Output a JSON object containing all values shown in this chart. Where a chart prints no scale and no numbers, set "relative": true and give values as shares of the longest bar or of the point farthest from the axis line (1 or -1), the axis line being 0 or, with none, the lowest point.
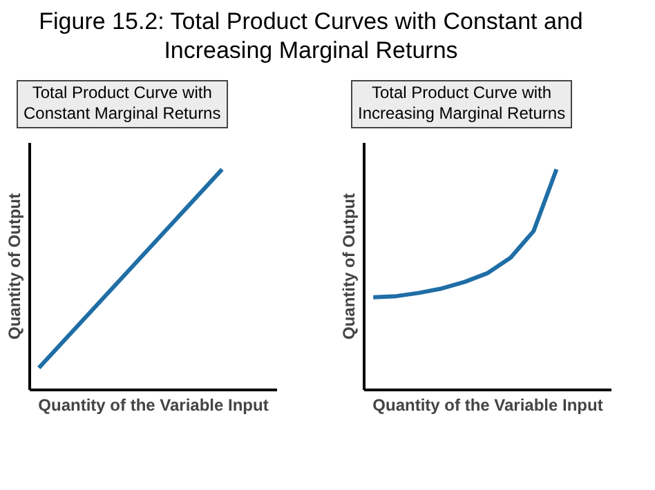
{
  "chart_data": [
    {
      "type": "line",
      "title": "Total Product Curve with\nConstant Marginal Returns",
      "xlabel": "Quantity of the Variable Input",
      "ylabel": "Quantity of Output",
      "relative": true,
      "tick_labels": false,
      "annotations": [
        "Figure 15.2: Total Product Curves with Constant and Increasing Marginal Returns"
      ],
      "categories": [
        null,
        null
      ],
      "series": [
        {
          "color": "#1f6ea6",
          "values": [
            0.1,
            1.0
          ]
        }
      ]
    },
    {
      "type": "line",
      "title": "Total Product Curve with\nIncreasing Marginal Returns",
      "xlabel": "Quantity of the Variable Input",
      "ylabel": "Quantity of Output",
      "relative": true,
      "tick_labels": false,
      "categories": [
        null,
        null,
        null,
        null,
        null,
        null,
        null,
        null,
        null
      ],
      "series": [
        {
          "color": "#1f6ea6",
          "values": [
            0.42,
            0.425,
            0.44,
            0.46,
            0.49,
            0.53,
            0.6,
            0.72,
            1.0
          ]
        }
      ]
    }
  ]
}
